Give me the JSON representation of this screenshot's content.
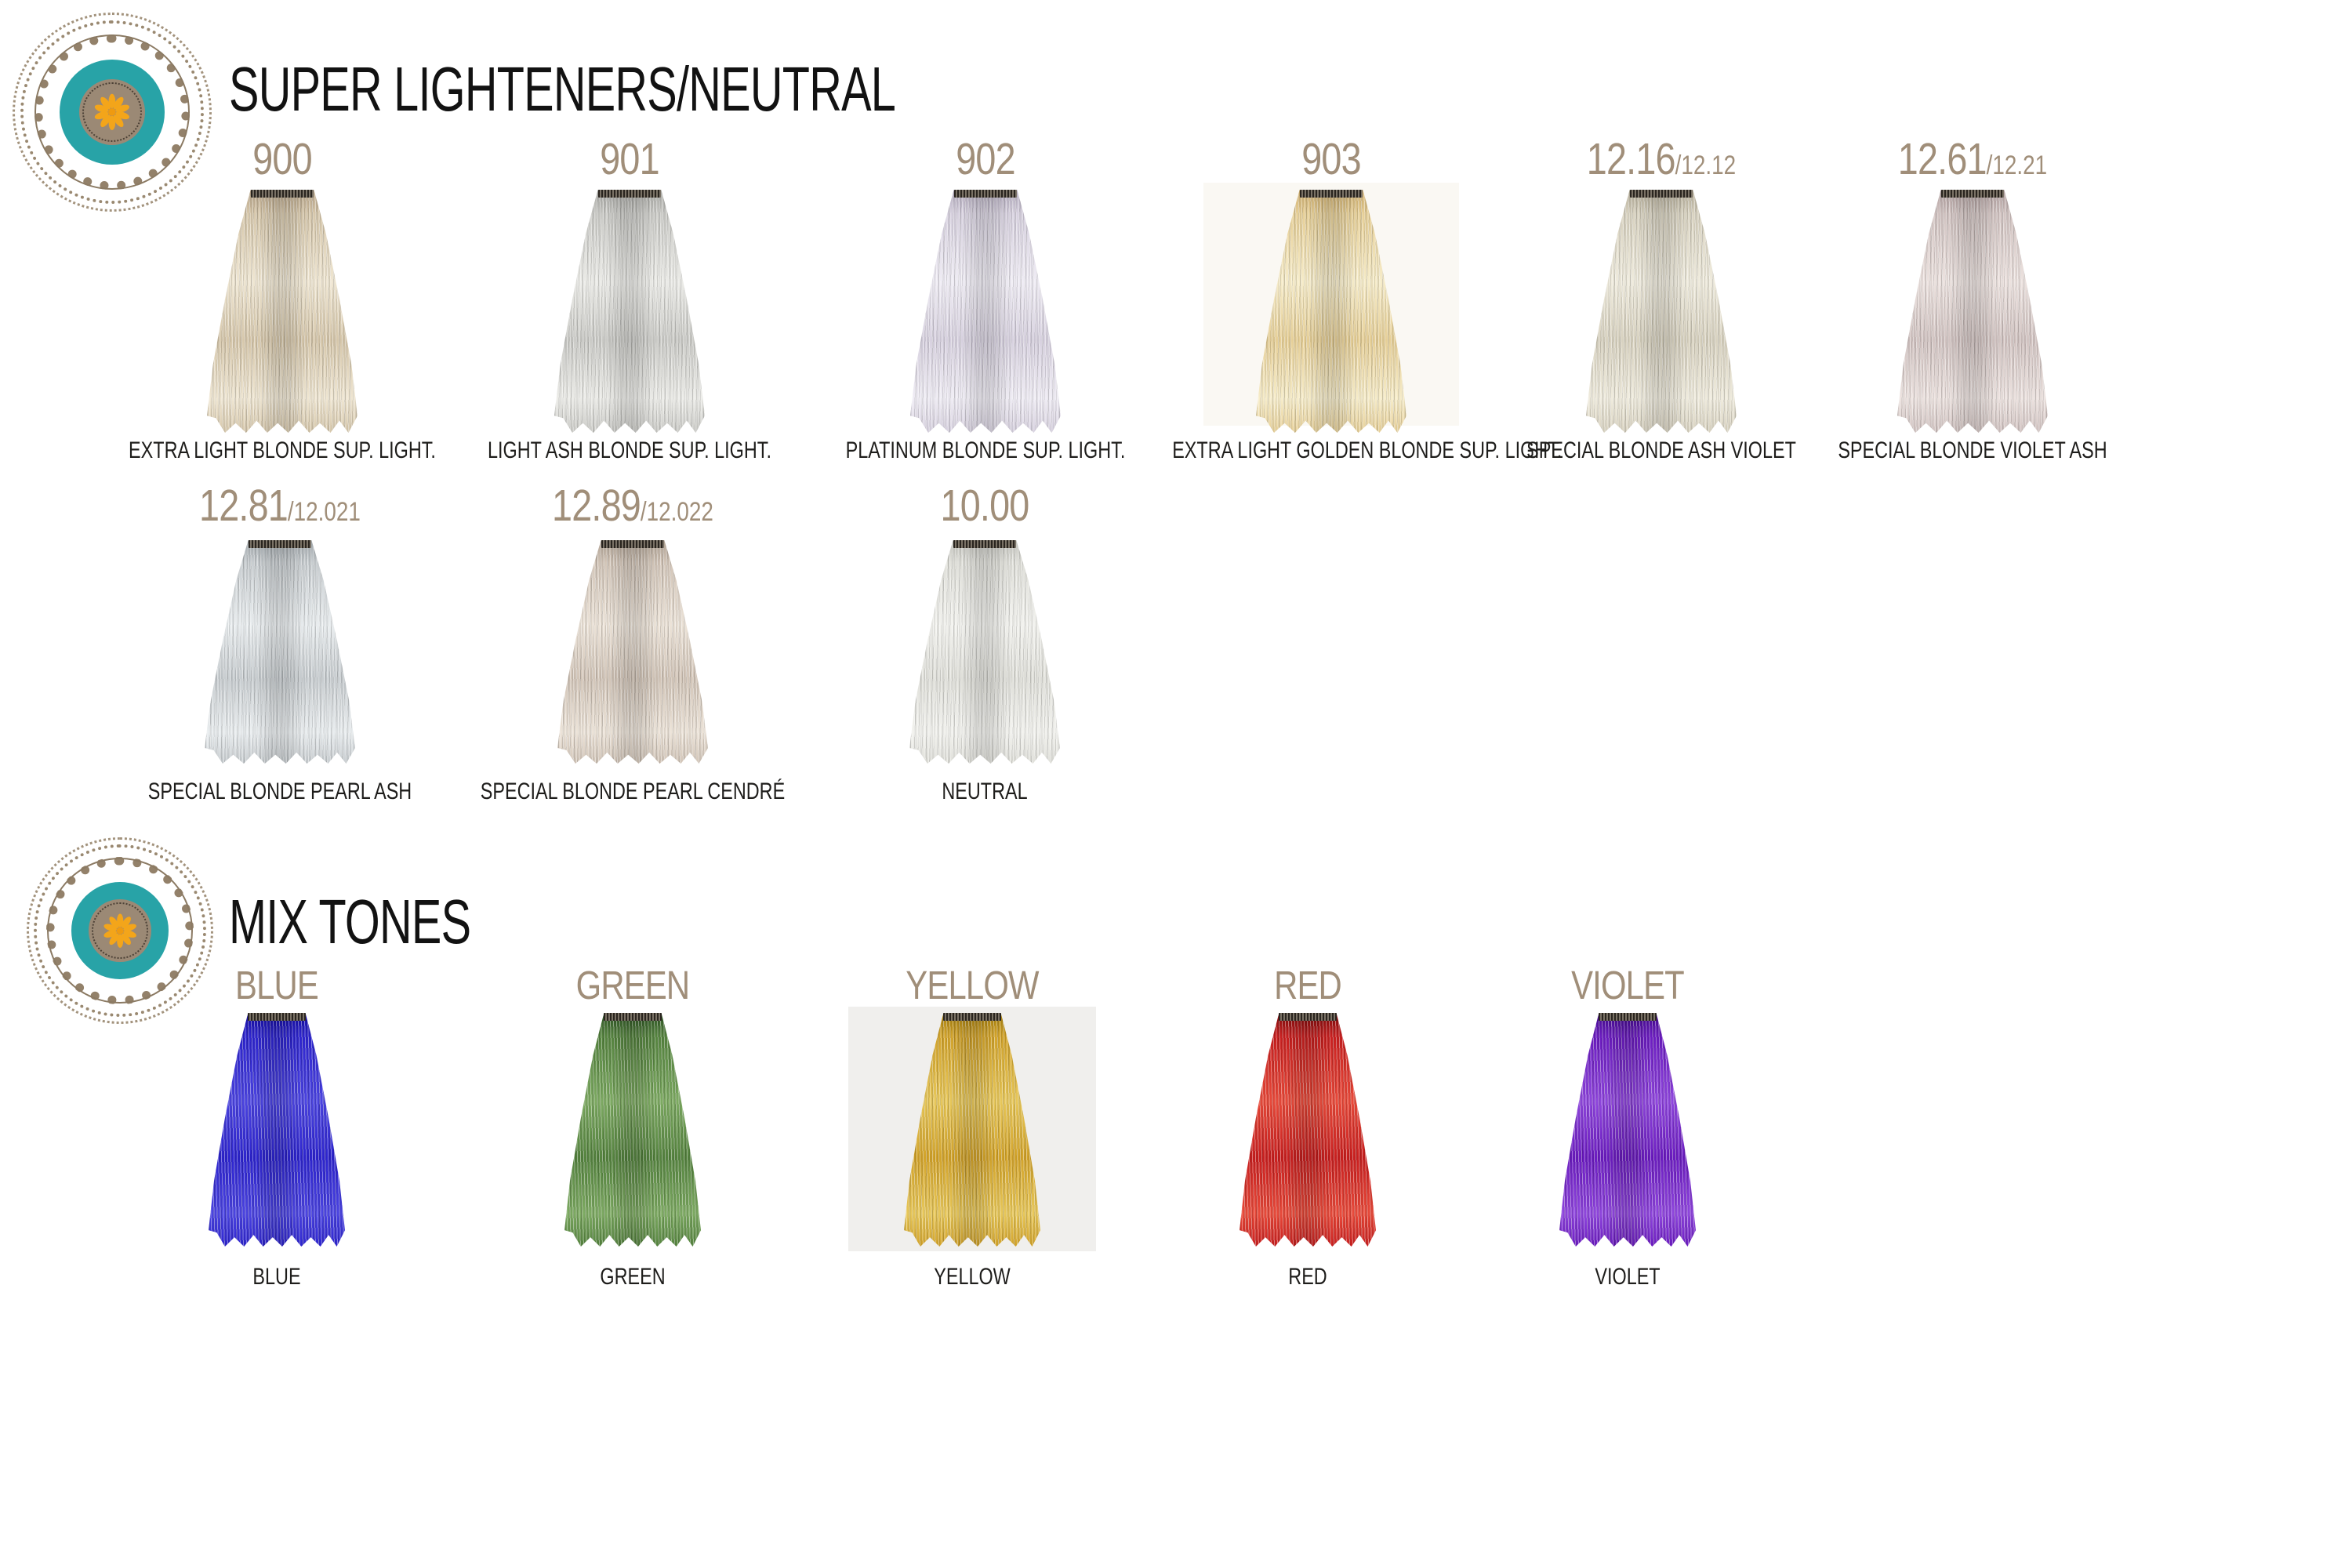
{
  "brand_colors": {
    "teal": "#28a3a7",
    "taupe": "#9b8975",
    "gold": "#f3a51a",
    "number_text": "#a08e79",
    "caption_text": "#1e1d1b",
    "title_text": "#121212"
  },
  "sections": [
    {
      "title": "SUPER LIGHTENERS/NEUTRAL",
      "rows": [
        {
          "swatches": [
            {
              "number": "900",
              "sub": "",
              "caption": "EXTRA LIGHT BLONDE SUP. LIGHT.",
              "colors": {
                "dark": "#b7a488",
                "base": "#d6c7ab",
                "light": "#efe6d2"
              },
              "panel": ""
            },
            {
              "number": "901",
              "sub": "",
              "caption": "LIGHT ASH BLONDE SUP. LIGHT.",
              "colors": {
                "dark": "#a8a8a4",
                "base": "#cbcbc7",
                "light": "#ebebe7"
              },
              "panel": ""
            },
            {
              "number": "902",
              "sub": "",
              "caption": "PLATINUM BLONDE SUP. LIGHT.",
              "colors": {
                "dark": "#b3abbd",
                "base": "#d7d1df",
                "light": "#efecf4"
              },
              "panel": ""
            },
            {
              "number": "903",
              "sub": "",
              "caption": "EXTRA LIGHT GOLDEN BLONDE SUP. LIGHT.",
              "colors": {
                "dark": "#cfae6e",
                "base": "#e6cf97",
                "light": "#f6ecc9"
              },
              "panel": "#faf8f3"
            },
            {
              "number": "12.16",
              "sub": "/12.12",
              "caption": "SPECIAL BLONDE ASH VIOLET",
              "colors": {
                "dark": "#b5ad99",
                "base": "#d8d2c0",
                "light": "#efebdd"
              },
              "panel": ""
            },
            {
              "number": "12.61",
              "sub": "/12.21",
              "caption": "SPECIAL BLONDE VIOLET ASH",
              "colors": {
                "dark": "#b1a0a0",
                "base": "#d2c4c2",
                "light": "#ece2df"
              },
              "panel": ""
            }
          ]
        },
        {
          "swatches": [
            {
              "number": "12.81",
              "sub": "/12.021",
              "caption": "SPECIAL BLONDE PEARL ASH",
              "colors": {
                "dark": "#9fa6aa",
                "base": "#c8cdd0",
                "light": "#e9edef"
              },
              "panel": ""
            },
            {
              "number": "12.89",
              "sub": "/12.022",
              "caption": "SPECIAL BLONDE PEARL CENDRÉ",
              "colors": {
                "dark": "#ad9f90",
                "base": "#d2c5b8",
                "light": "#ece3d8"
              },
              "panel": ""
            },
            {
              "number": "10.00",
              "sub": "",
              "caption": "NEUTRAL",
              "colors": {
                "dark": "#c2c2bc",
                "base": "#e0e0da",
                "light": "#f2f2ee"
              },
              "panel": ""
            }
          ]
        }
      ]
    },
    {
      "title": "MIX TONES",
      "rows": [
        {
          "swatches": [
            {
              "number": "BLUE",
              "sub": "",
              "caption": "BLUE",
              "colors": {
                "dark": "#150da0",
                "base": "#2d24cd",
                "light": "#4b44e0"
              },
              "panel": ""
            },
            {
              "number": "GREEN",
              "sub": "",
              "caption": "GREEN",
              "colors": {
                "dark": "#2f5526",
                "base": "#55833f",
                "light": "#7daa62"
              },
              "panel": ""
            },
            {
              "number": "YELLOW",
              "sub": "",
              "caption": "YELLOW",
              "colors": {
                "dark": "#a57f0e",
                "base": "#d2a32a",
                "light": "#e7c75a"
              },
              "panel": "#f0efed"
            },
            {
              "number": "RED",
              "sub": "",
              "caption": "RED",
              "colors": {
                "dark": "#7e0d0d",
                "base": "#c81f1f",
                "light": "#e84a3a"
              },
              "panel": ""
            },
            {
              "number": "VIOLET",
              "sub": "",
              "caption": "VIOLET",
              "colors": {
                "dark": "#430b8e",
                "base": "#6b1cc0",
                "light": "#8f46dd"
              },
              "panel": ""
            }
          ]
        }
      ]
    }
  ]
}
